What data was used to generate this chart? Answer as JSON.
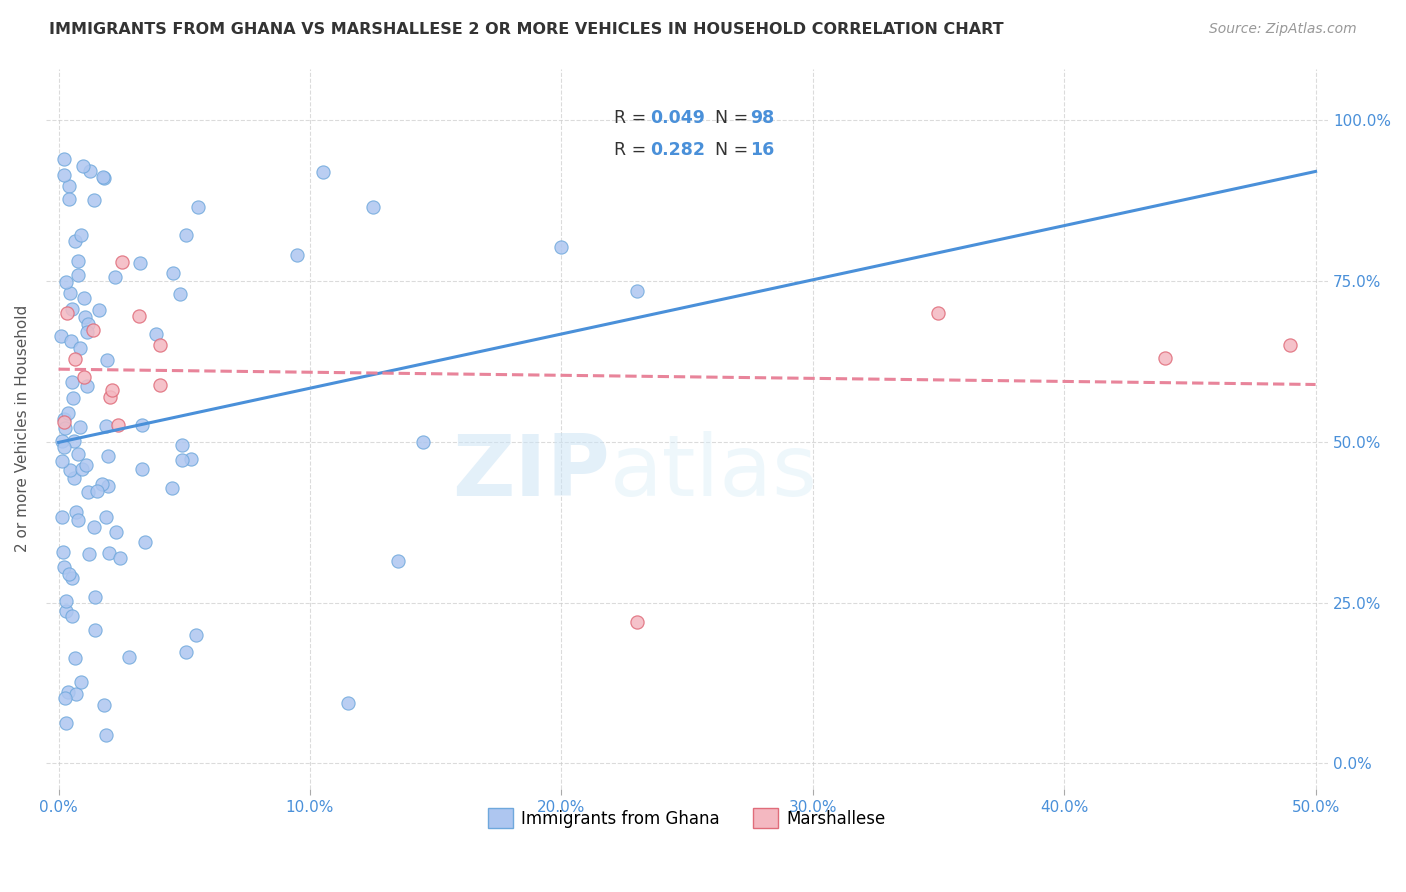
{
  "title": "IMMIGRANTS FROM GHANA VS MARSHALLESE 2 OR MORE VEHICLES IN HOUSEHOLD CORRELATION CHART",
  "source": "Source: ZipAtlas.com",
  "ylabel": "2 or more Vehicles in Household",
  "ghana_color": "#aec6f0",
  "ghana_edge_color": "#6fa8dc",
  "marshallese_color": "#f4b8c1",
  "marshallese_edge_color": "#e06c7a",
  "ghana_R": "0.049",
  "ghana_N": "98",
  "marshallese_R": "0.282",
  "marshallese_N": "16",
  "ghana_trend_color": "#4a90d9",
  "marshallese_trend_color": "#e8849a",
  "watermark_zip": "ZIP",
  "watermark_atlas": "atlas",
  "legend_text_color": "#4a90d9",
  "tick_color": "#4a90d9",
  "title_color": "#333333",
  "source_color": "#999999",
  "ylabel_color": "#555555",
  "grid_color": "#cccccc"
}
